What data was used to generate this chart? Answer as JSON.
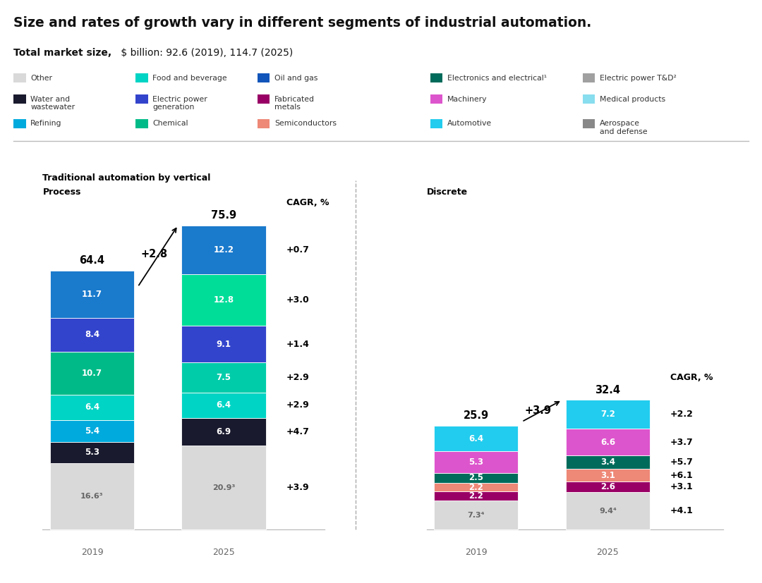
{
  "title": "Size and rates of growth vary in different segments of industrial automation.",
  "subtitle_bold": "Total market size,",
  "subtitle_rest": " $ billion: 92.6 (2019), 114.7 (2025)",
  "section_label": "Traditional automation by vertical",
  "process_label": "Process",
  "discrete_label": "Discrete",
  "cagr_label": "CAGR, %",
  "legend_items": [
    {
      "label": "Other",
      "color": "#d9d9d9"
    },
    {
      "label": "Food and beverage",
      "color": "#00d4c4"
    },
    {
      "label": "Oil and gas",
      "color": "#1155bb"
    },
    {
      "label": "Electronics and electrical¹",
      "color": "#006b5b"
    },
    {
      "label": "Electric power T&D²",
      "color": "#a0a0a0"
    },
    {
      "label": "Water and\nwastewater",
      "color": "#1a1a2e"
    },
    {
      "label": "Electric power\ngeneration",
      "color": "#3344cc"
    },
    {
      "label": "Fabricated\nmetals",
      "color": "#990066"
    },
    {
      "label": "Machinery",
      "color": "#dd55cc"
    },
    {
      "label": "Medical products",
      "color": "#88ddee"
    },
    {
      "label": "Refining",
      "color": "#00aadd"
    },
    {
      "label": "Chemical",
      "color": "#00bb88"
    },
    {
      "label": "Semiconductors",
      "color": "#ee8877"
    },
    {
      "label": "Automotive",
      "color": "#22ccee"
    },
    {
      "label": "Aerospace\nand defense",
      "color": "#888888"
    }
  ],
  "process_2019": {
    "total": "64.4",
    "segments": [
      {
        "value": 16.6,
        "color": "#d9d9d9",
        "text_color": "#666666",
        "label": "16.6³"
      },
      {
        "value": 5.3,
        "color": "#1a1a2e",
        "text_color": "#ffffff",
        "label": "5.3"
      },
      {
        "value": 5.4,
        "color": "#00aadd",
        "text_color": "#ffffff",
        "label": "5.4"
      },
      {
        "value": 6.4,
        "color": "#00d4c4",
        "text_color": "#ffffff",
        "label": "6.4"
      },
      {
        "value": 10.7,
        "color": "#00bb88",
        "text_color": "#ffffff",
        "label": "10.7"
      },
      {
        "value": 8.4,
        "color": "#3344cc",
        "text_color": "#ffffff",
        "label": "8.4"
      },
      {
        "value": 11.7,
        "color": "#1a7acc",
        "text_color": "#ffffff",
        "label": "11.7"
      }
    ]
  },
  "process_2025": {
    "total": "75.9",
    "segments": [
      {
        "value": 20.9,
        "color": "#d9d9d9",
        "text_color": "#666666",
        "label": "20.9³"
      },
      {
        "value": 6.9,
        "color": "#1a1a2e",
        "text_color": "#ffffff",
        "label": "6.9"
      },
      {
        "value": 6.4,
        "color": "#00d4c4",
        "text_color": "#ffffff",
        "label": "6.4"
      },
      {
        "value": 7.5,
        "color": "#00ccaa",
        "text_color": "#ffffff",
        "label": "7.5"
      },
      {
        "value": 9.1,
        "color": "#3344cc",
        "text_color": "#ffffff",
        "label": "9.1"
      },
      {
        "value": 12.8,
        "color": "#00dd99",
        "text_color": "#ffffff",
        "label": "12.8"
      },
      {
        "value": 12.2,
        "color": "#1a7acc",
        "text_color": "#ffffff",
        "label": "12.2"
      }
    ]
  },
  "process_cagr": [
    "+3.9",
    "+4.7",
    "+2.9",
    "+2.9",
    "+1.4",
    "+3.0",
    "+0.7"
  ],
  "discrete_2019": {
    "total": "25.9",
    "segments": [
      {
        "value": 7.3,
        "color": "#d9d9d9",
        "text_color": "#666666",
        "label": "7.3⁴"
      },
      {
        "value": 2.2,
        "color": "#990066",
        "text_color": "#ffffff",
        "label": "2.2"
      },
      {
        "value": 2.2,
        "color": "#ee8877",
        "text_color": "#ffffff",
        "label": "2.2"
      },
      {
        "value": 2.5,
        "color": "#006b5b",
        "text_color": "#ffffff",
        "label": "2.5"
      },
      {
        "value": 5.3,
        "color": "#dd55cc",
        "text_color": "#ffffff",
        "label": "5.3"
      },
      {
        "value": 6.4,
        "color": "#22ccee",
        "text_color": "#ffffff",
        "label": "6.4"
      }
    ]
  },
  "discrete_2025": {
    "total": "32.4",
    "segments": [
      {
        "value": 9.4,
        "color": "#d9d9d9",
        "text_color": "#666666",
        "label": "9.4⁴"
      },
      {
        "value": 2.6,
        "color": "#990066",
        "text_color": "#ffffff",
        "label": "2.6"
      },
      {
        "value": 3.1,
        "color": "#ee8877",
        "text_color": "#ffffff",
        "label": "3.1"
      },
      {
        "value": 3.4,
        "color": "#006b5b",
        "text_color": "#ffffff",
        "label": "3.4"
      },
      {
        "value": 6.6,
        "color": "#dd55cc",
        "text_color": "#ffffff",
        "label": "6.6"
      },
      {
        "value": 7.2,
        "color": "#22ccee",
        "text_color": "#ffffff",
        "label": "7.2"
      }
    ]
  },
  "discrete_cagr": [
    "+4.1",
    "+3.1",
    "+6.1",
    "+5.7",
    "+3.7",
    "+2.2"
  ],
  "process_growth": "+2.8",
  "discrete_growth": "+3.9",
  "bar_scale": 1.0,
  "max_bar_height": 80.0
}
